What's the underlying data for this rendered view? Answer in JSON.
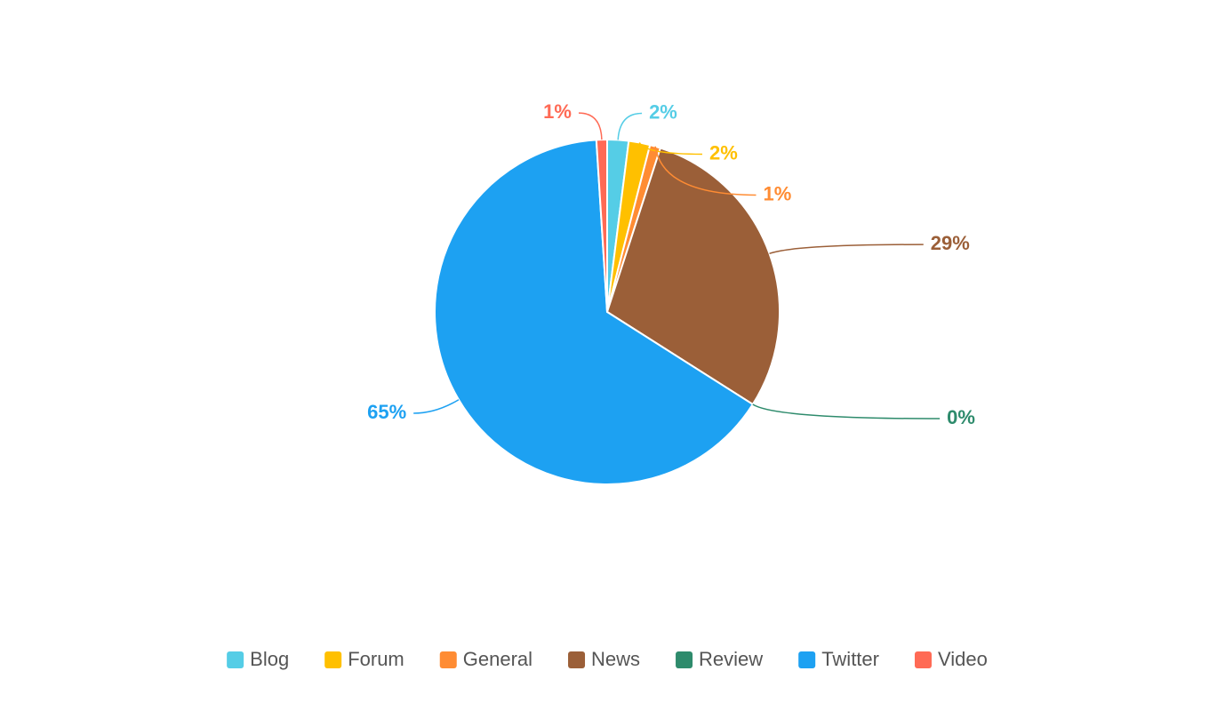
{
  "chart_data": {
    "type": "pie",
    "categories": [
      "Blog",
      "Forum",
      "General",
      "News",
      "Review",
      "Twitter",
      "Video"
    ],
    "values": [
      2,
      2,
      1,
      29,
      0,
      65,
      1
    ],
    "value_labels": [
      "2%",
      "2%",
      "1%",
      "29%",
      "0%",
      "65%",
      "1%"
    ],
    "colors": [
      "#55cde6",
      "#ffc000",
      "#ff8c33",
      "#9b5f38",
      "#2e8b6c",
      "#1da1f2",
      "#ff6a55"
    ],
    "legend": "bottom"
  }
}
